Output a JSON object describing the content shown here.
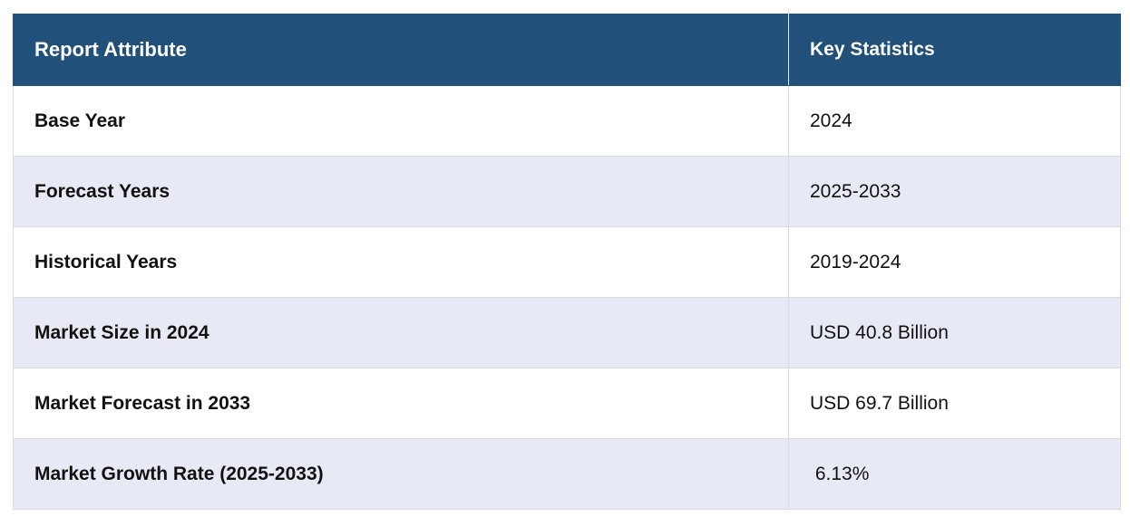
{
  "table": {
    "header": {
      "attribute": "Report Attribute",
      "statistics": "Key Statistics"
    },
    "rows": [
      {
        "attribute": "Base Year",
        "value": "2024"
      },
      {
        "attribute": "Forecast Years",
        "value": "2025-2033"
      },
      {
        "attribute": "Historical Years",
        "value": "2019-2024"
      },
      {
        "attribute": "Market Size in 2024",
        "value": "USD 40.8 Billion"
      },
      {
        "attribute": "Market Forecast in 2033",
        "value": "USD 69.7 Billion"
      },
      {
        "attribute": "Market Growth Rate (2025-2033)",
        "value": " 6.13%"
      }
    ]
  },
  "colors": {
    "header_bg": "#21507a",
    "header_text": "#ffffff",
    "row_alt_bg": "#e7eaf4",
    "row_bg": "#ffffff"
  }
}
